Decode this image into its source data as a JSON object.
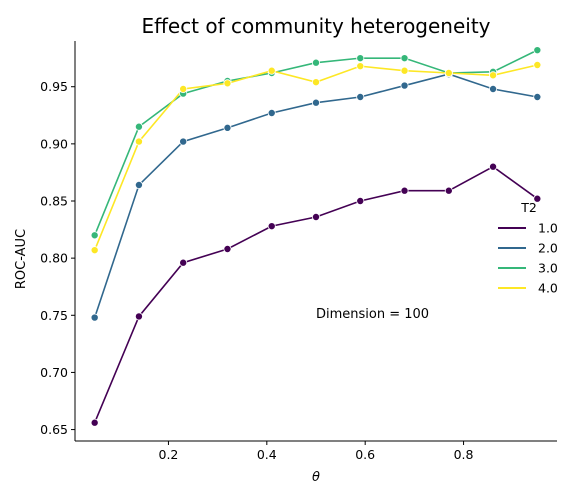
{
  "chart_data": {
    "type": "line",
    "title": "Effect of community heterogeneity",
    "xlabel": "θ",
    "ylabel": "ROC-AUC",
    "xlim": [
      0.01,
      0.99
    ],
    "ylim": [
      0.64,
      0.99
    ],
    "xticks": [
      0.2,
      0.4,
      0.6,
      0.8
    ],
    "xtick_labels": [
      "0.2",
      "0.4",
      "0.6",
      "0.8"
    ],
    "yticks": [
      0.65,
      0.7,
      0.75,
      0.8,
      0.85,
      0.9,
      0.95
    ],
    "ytick_labels": [
      "0.65",
      "0.70",
      "0.75",
      "0.80",
      "0.85",
      "0.90",
      "0.95"
    ],
    "grid": false,
    "annotation": "Dimension = 100",
    "legend": {
      "title": "T2",
      "placement": "right"
    },
    "x": [
      0.05,
      0.14,
      0.23,
      0.32,
      0.41,
      0.5,
      0.59,
      0.68,
      0.77,
      0.86,
      0.95
    ],
    "series": [
      {
        "name": "1.0",
        "color": "#440154",
        "values": [
          0.656,
          0.749,
          0.796,
          0.808,
          0.828,
          0.836,
          0.85,
          0.859,
          0.859,
          0.88,
          0.852
        ]
      },
      {
        "name": "2.0",
        "color": "#31688e",
        "values": [
          0.748,
          0.864,
          0.902,
          0.914,
          0.927,
          0.936,
          0.941,
          0.951,
          0.961,
          0.948,
          0.941
        ]
      },
      {
        "name": "3.0",
        "color": "#35b779",
        "values": [
          0.82,
          0.915,
          0.944,
          0.955,
          0.962,
          0.971,
          0.975,
          0.975,
          0.962,
          0.963,
          0.982
        ]
      },
      {
        "name": "4.0",
        "color": "#fde725",
        "values": [
          0.807,
          0.902,
          0.948,
          0.953,
          0.964,
          0.954,
          0.968,
          0.964,
          0.962,
          0.96,
          0.969
        ]
      }
    ]
  }
}
